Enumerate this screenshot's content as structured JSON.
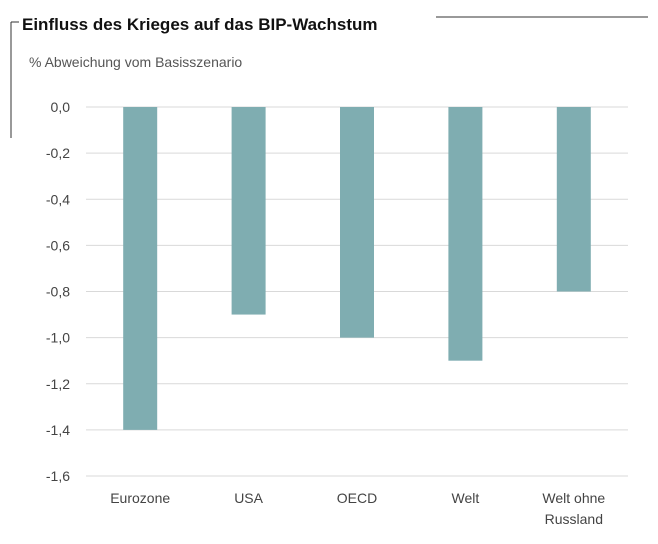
{
  "chart_data": {
    "type": "bar",
    "title": "Einfluss des Krieges auf das BIP-Wachstum",
    "subtitle": "% Abweichung vom Basisszenario",
    "xlabel": "",
    "ylabel": "",
    "categories": [
      "Eurozone",
      "USA",
      "OECD",
      "Welt",
      "Welt ohne Russland"
    ],
    "values": [
      -1.4,
      -0.9,
      -1.0,
      -1.1,
      -0.8
    ],
    "ylim": [
      -1.6,
      0.0
    ],
    "yticks": [
      "0,0",
      "-0,2",
      "-0,4",
      "-0,6",
      "-0,8",
      "-1,0",
      "-1,2",
      "-1,4",
      "-1,6"
    ],
    "bar_color": "#7fadb1",
    "grid": true
  }
}
